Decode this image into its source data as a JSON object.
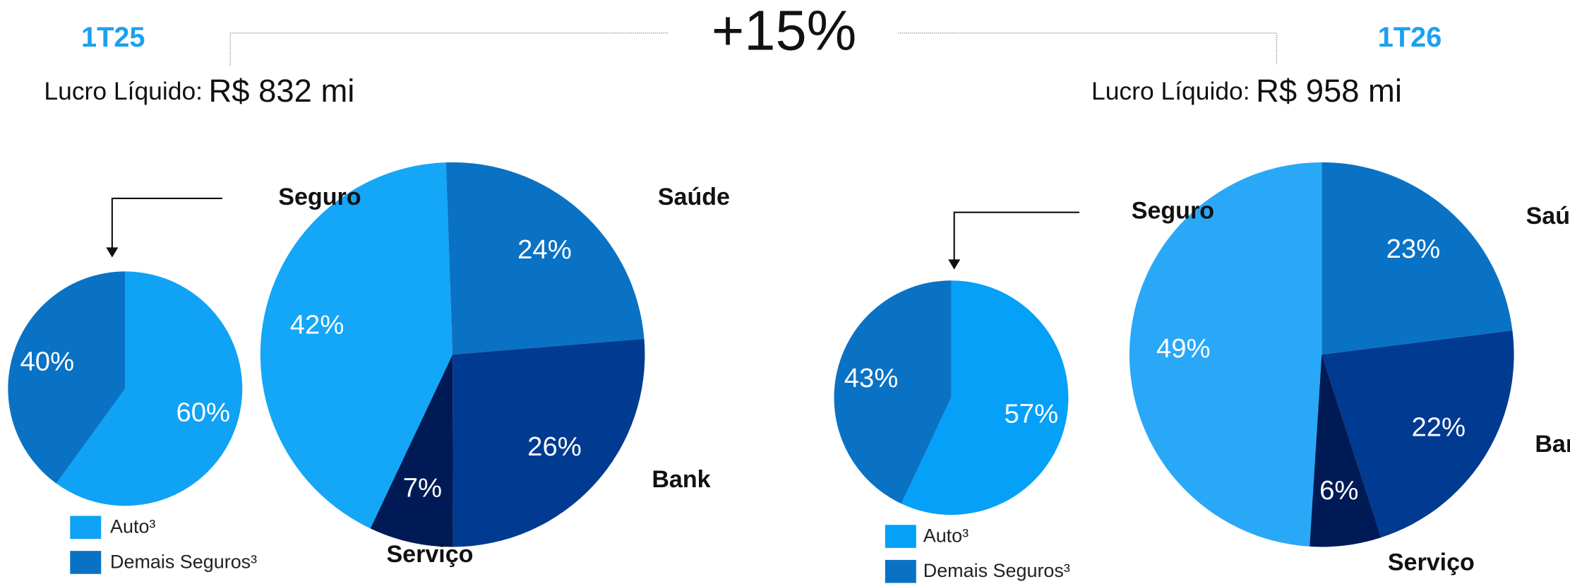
{
  "change": "+15%",
  "periods": [
    {
      "label": "1T25",
      "metric": "Lucro Líquido:",
      "value": "R$ 832 mi"
    },
    {
      "label": "1T26",
      "metric": "Lucro Líquido:",
      "value": "R$ 958 mi"
    }
  ],
  "chart_data": [
    {
      "type": "pie",
      "categories": [
        "Auto³",
        "Demais Seguros³"
      ],
      "values": [
        60,
        40
      ],
      "value_labels": [
        "60%",
        "40%"
      ],
      "colors": [
        "#10a2f5",
        "#0a72c4"
      ],
      "legend": true
    },
    {
      "type": "pie",
      "categories": [
        "Seguro",
        "Saúde",
        "Bank",
        "Serviço"
      ],
      "values": [
        42,
        24,
        26,
        7
      ],
      "value_labels": [
        "42%",
        "24%",
        "26%",
        "7%"
      ],
      "colors": [
        "#14a6f7",
        "#0a72c4",
        "#003a91",
        "#001a55"
      ],
      "legend": false
    },
    {
      "type": "pie",
      "categories": [
        "Auto³",
        "Demais Seguros³"
      ],
      "values": [
        57,
        43
      ],
      "value_labels": [
        "57%",
        "43%"
      ],
      "colors": [
        "#05a0f8",
        "#0a72c4"
      ],
      "legend": true
    },
    {
      "type": "pie",
      "categories": [
        "Seguro",
        "Saúde",
        "Bank",
        "Serviço"
      ],
      "values": [
        49,
        23,
        22,
        6
      ],
      "value_labels": [
        "49%",
        "23%",
        "22%",
        "6%"
      ],
      "colors": [
        "#2aa8f8",
        "#0a72c4",
        "#003a91",
        "#001a55"
      ],
      "legend": false
    }
  ]
}
